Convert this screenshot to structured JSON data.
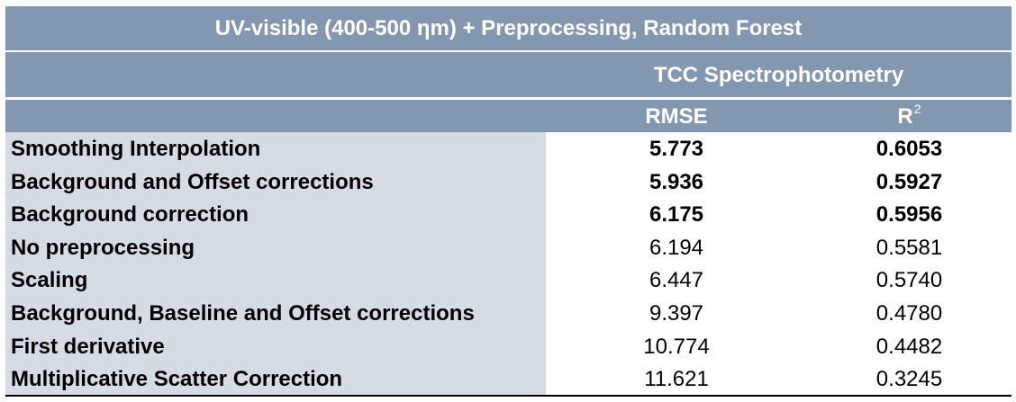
{
  "table": {
    "title": "UV-visible (400-500 ηm) + Preprocessing, Random Forest",
    "group_header": "TCC Spectrophotometry",
    "columns": {
      "rmse": "RMSE",
      "r2_base": "R",
      "r2_sup": "2"
    },
    "rows": [
      {
        "name": "Smoothing Interpolation",
        "rmse": "5.773",
        "r2": "0.6053",
        "bold": true
      },
      {
        "name": "Background and Offset corrections",
        "rmse": "5.936",
        "r2": "0.5927",
        "bold": true
      },
      {
        "name": "Background correction",
        "rmse": "6.175",
        "r2": "0.5956",
        "bold": true
      },
      {
        "name": "No preprocessing",
        "rmse": "6.194",
        "r2": "0.5581",
        "bold": false
      },
      {
        "name": "Scaling",
        "rmse": "6.447",
        "r2": "0.5740",
        "bold": false
      },
      {
        "name": "Background, Baseline and Offset corrections",
        "rmse": "9.397",
        "r2": "0.4780",
        "bold": false
      },
      {
        "name": "First derivative",
        "rmse": "10.774",
        "r2": "0.4482",
        "bold": false
      },
      {
        "name": "Multiplicative Scatter Correction",
        "rmse": "11.621",
        "r2": "0.3245",
        "bold": false
      }
    ],
    "colors": {
      "header_bg": "#8497b0",
      "label_bg": "#d6dce4",
      "header_text": "#ffffff"
    }
  }
}
